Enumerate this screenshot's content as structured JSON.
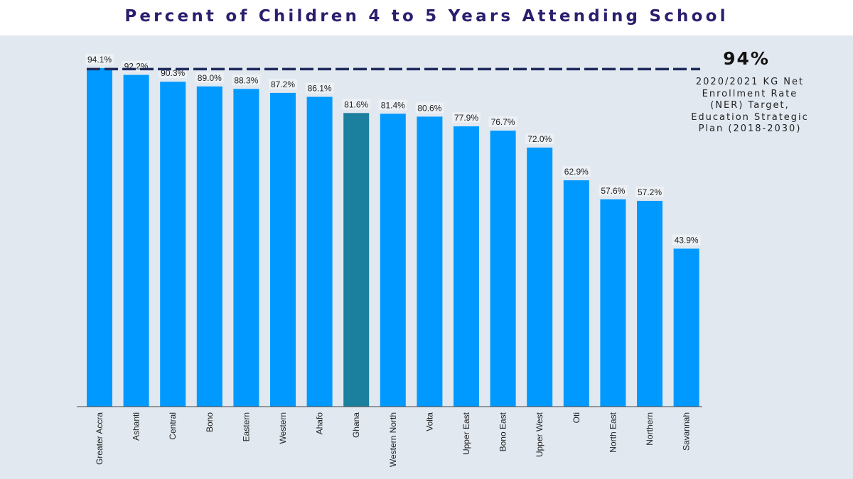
{
  "chart_data": {
    "type": "bar",
    "title": "Percent of Children 4 to 5 Years Attending School",
    "categories": [
      "Greater Accra",
      "Ashanti",
      "Central",
      "Bono",
      "Eastern",
      "Western",
      "Ahafo",
      "Ghana",
      "Western North",
      "Volta",
      "Upper East",
      "Bono East",
      "Upper West",
      "Oti",
      "North East",
      "Northern",
      "Savannah"
    ],
    "values": [
      94.1,
      92.2,
      90.3,
      89.0,
      88.3,
      87.2,
      86.1,
      81.6,
      81.4,
      80.6,
      77.9,
      76.7,
      72.0,
      62.9,
      57.6,
      57.2,
      43.9
    ],
    "data_labels": [
      "94.1%",
      "92.2%",
      "90.3%",
      "89.0%",
      "88.3%",
      "87.2%",
      "86.1%",
      "81.6%",
      "81.4%",
      "80.6%",
      "77.9%",
      "76.7%",
      "72.0%",
      "62.9%",
      "57.6%",
      "57.2%",
      "43.9%"
    ],
    "ylim": [
      0,
      100
    ],
    "grid": false,
    "colors": {
      "bar": "#0099ff",
      "highlight": "#1b7f9e",
      "highlight_category": "Ghana",
      "target_line": "#1f2a5c",
      "title": "#2a1f6e",
      "background": "#e1e8f0"
    },
    "reference_line": {
      "value": 94,
      "label": "94%",
      "description": "2020/2021 KG Net\nEnrollment Rate\n(NER) Target,\nEducation Strategic\nPlan (2018-2030)"
    }
  }
}
